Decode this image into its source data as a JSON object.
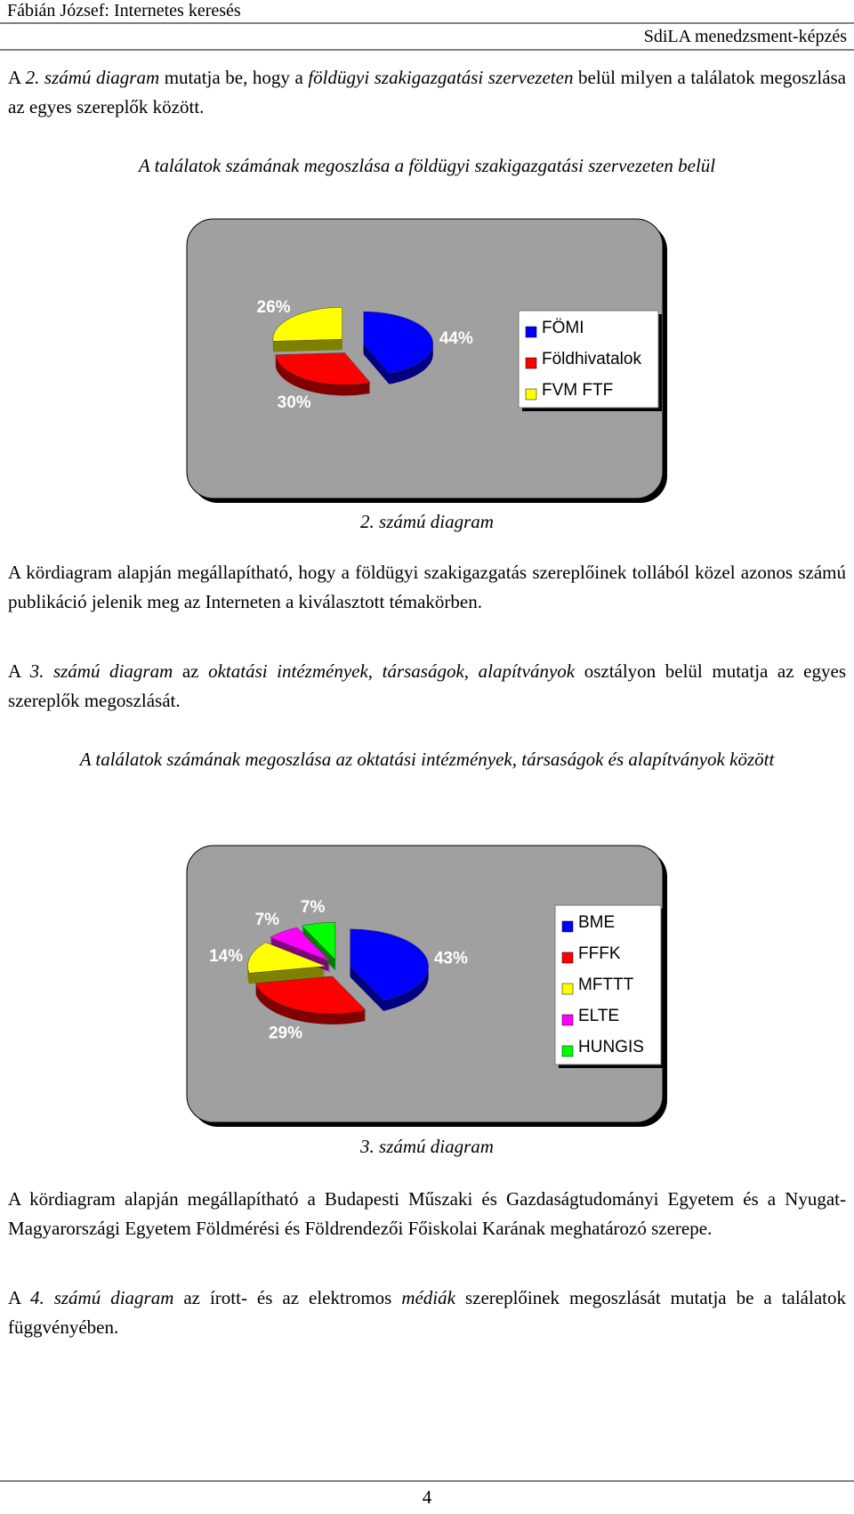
{
  "header": {
    "title": "Fábián József: Internetes keresés",
    "subtitle": "SdiLA menedzsment-képzés"
  },
  "paragraphs": [
    {
      "runs": [
        {
          "text": "A ",
          "italic": false
        },
        {
          "text": "2. számú diagram",
          "italic": true
        },
        {
          "text": " mutatja be, hogy a ",
          "italic": false
        },
        {
          "text": "földügyi szakigazgatási szervezeten",
          "italic": true
        },
        {
          "text": " belül milyen a találatok megoszlása az egyes szereplők között.",
          "italic": false
        }
      ]
    },
    {
      "runs": [
        {
          "text": "A kördiagram alapján megállapítható, hogy a földügyi szakigazgatás szereplőinek tollából közel azonos számú publikáció jelenik meg az Interneten a kiválasztott témakörben.",
          "italic": false
        }
      ]
    },
    {
      "runs": [
        {
          "text": "A ",
          "italic": false
        },
        {
          "text": "3. számú diagram",
          "italic": true
        },
        {
          "text": " az ",
          "italic": false
        },
        {
          "text": "oktatási intézmények, társaságok, alapítványok",
          "italic": true
        },
        {
          "text": " osztályon belül mutatja az egyes szereplők megoszlását.",
          "italic": false
        }
      ]
    },
    {
      "runs": [
        {
          "text": "A kördiagram alapján megállapítható a Budapesti Műszaki és Gazdaságtudományi Egyetem és a Nyugat-Magyarországi Egyetem Földmérési és Földrendezői Főiskolai Karának meghatározó szerepe.",
          "italic": false
        }
      ]
    },
    {
      "runs": [
        {
          "text": "A ",
          "italic": false
        },
        {
          "text": "4. számú diagram",
          "italic": true
        },
        {
          "text": " az írott- és az elektromos ",
          "italic": false
        },
        {
          "text": "médiák",
          "italic": true
        },
        {
          "text": " szereplőinek megoszlását mutatja be a találatok függvényében.",
          "italic": false
        }
      ]
    }
  ],
  "figures": [
    {
      "title": "A találatok számának megoszlása a földügyi szakigazgatási szervezeten belül",
      "caption": "2. számú diagram",
      "chart": {
        "type": "pie",
        "categories": [
          "FÖMI",
          "Földhivatalok",
          "FVM FTF"
        ],
        "values": [
          44,
          30,
          26
        ],
        "value_labels": [
          "44%",
          "30%",
          "26%"
        ],
        "colors": [
          "#0000ff",
          "#ff0000",
          "#ffff00"
        ]
      }
    },
    {
      "title": "A találatok számának megoszlása az oktatási intézmények, társaságok és alapítványok között",
      "caption": "3. számú diagram",
      "chart": {
        "type": "pie",
        "categories": [
          "BME",
          "FFFK",
          "MFTTT",
          "ELTE",
          "HUNGIS"
        ],
        "values": [
          43,
          29,
          14,
          7,
          7
        ],
        "value_labels": [
          "43%",
          "29%",
          "14%",
          "7%",
          "7%"
        ],
        "colors": [
          "#0000ff",
          "#ff0000",
          "#ffff00",
          "#ff00ff",
          "#00ff00"
        ]
      }
    }
  ],
  "footer": {
    "page_number": "4"
  }
}
